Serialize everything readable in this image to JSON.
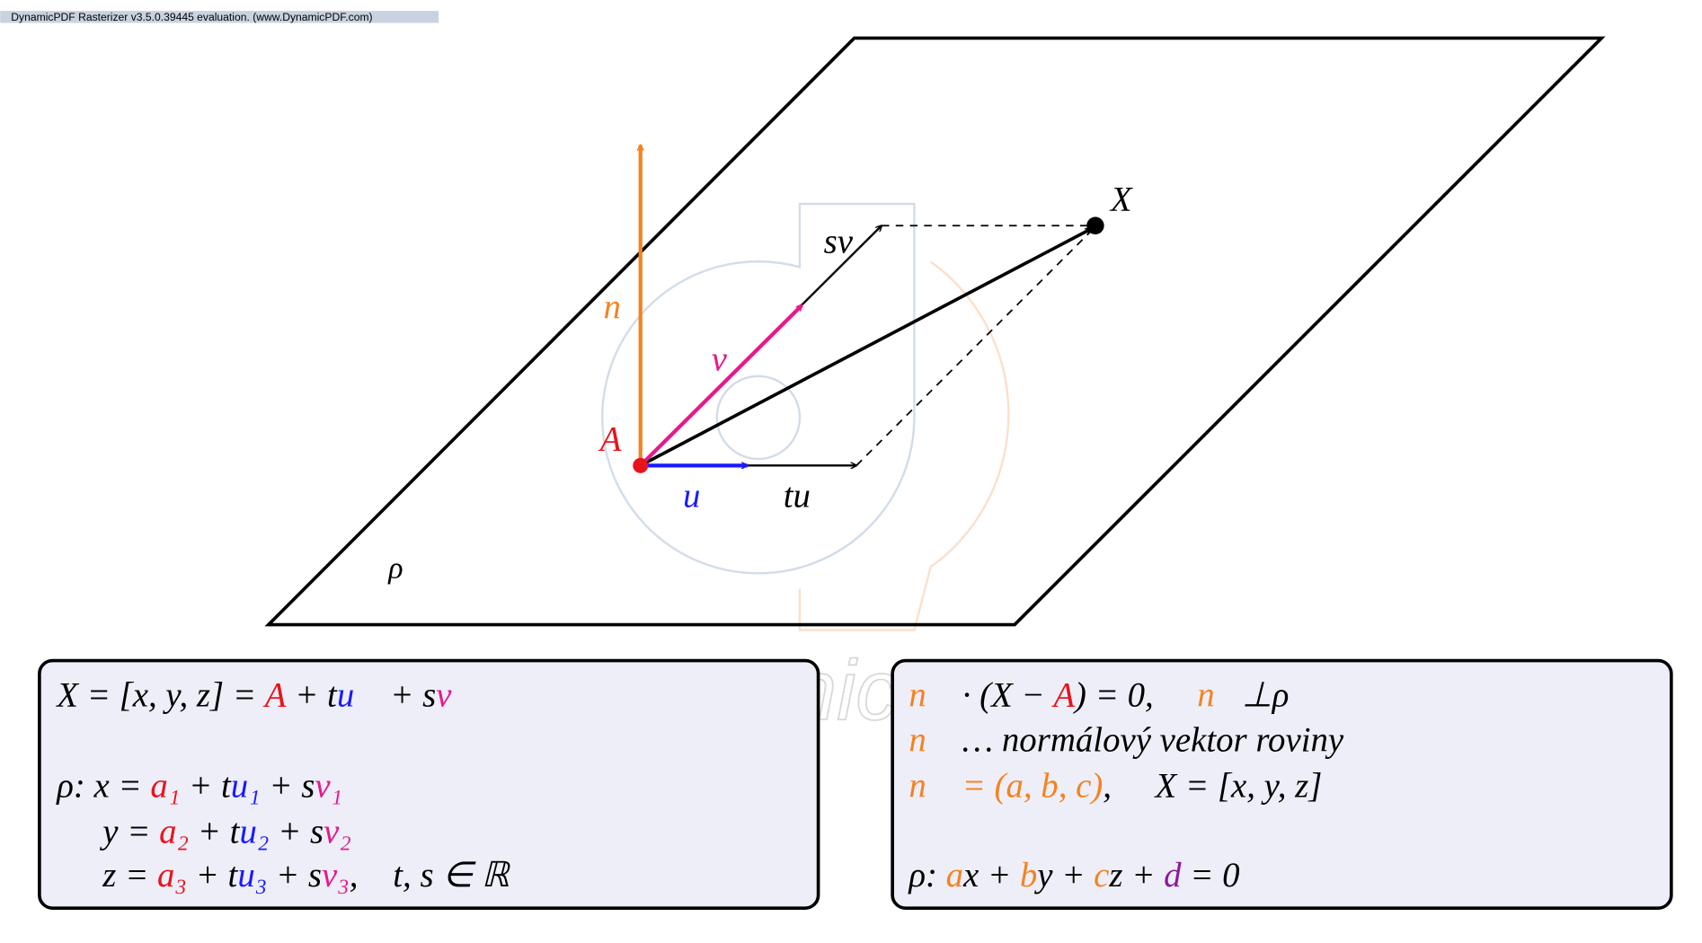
{
  "header": "DynamicPDF Rasterizer v3.5.0.39445 evaluation. (www.DynamicPDF.com)",
  "watermark": "DynamicPDF",
  "labels": {
    "X": "X",
    "A": "A",
    "n": "n⃗",
    "v": "v⃗",
    "u": "u⃗",
    "tu": "tu⃗",
    "sv": "sv⃗",
    "rho": "ρ"
  },
  "left_box": {
    "lines": [
      [
        {
          "t": "X = [x, y, z] = "
        },
        {
          "t": "A",
          "c": "#e8141c"
        },
        {
          "t": " + t"
        },
        {
          "t": "u⃗",
          "c": "#1a1aff"
        },
        {
          "t": " + s"
        },
        {
          "t": "v⃗",
          "c": "#e6198c"
        }
      ],
      [
        {
          "t": "ρ: x = "
        },
        {
          "t": "a₁",
          "c": "#e8141c"
        },
        {
          "t": " + t"
        },
        {
          "t": "u₁",
          "c": "#1a1aff"
        },
        {
          "t": " + s"
        },
        {
          "t": "v₁",
          "c": "#e6198c"
        }
      ],
      [
        {
          "t": "y = "
        },
        {
          "t": "a₂",
          "c": "#e8141c"
        },
        {
          "t": " + t"
        },
        {
          "t": "u₂",
          "c": "#1a1aff"
        },
        {
          "t": " + s"
        },
        {
          "t": "v₂",
          "c": "#e6198c"
        }
      ],
      [
        {
          "t": "z = "
        },
        {
          "t": "a₃",
          "c": "#e8141c"
        },
        {
          "t": " + t"
        },
        {
          "t": "u₃",
          "c": "#1a1aff"
        },
        {
          "t": " + s"
        },
        {
          "t": "v₃",
          "c": "#e6198c"
        },
        {
          "t": ",    t, s ∈ ℝ"
        }
      ]
    ]
  },
  "right_box": {
    "lines": [
      [
        {
          "t": "n⃗",
          "c": "#f5821f"
        },
        {
          "t": " · (X − "
        },
        {
          "t": "A",
          "c": "#e8141c"
        },
        {
          "t": ") = 0,     "
        },
        {
          "t": "n⃗",
          "c": "#f5821f"
        },
        {
          "t": "⊥ρ"
        }
      ],
      [
        {
          "t": "n⃗",
          "c": "#f5821f"
        },
        {
          "t": " … normálový vektor roviny"
        }
      ],
      [
        {
          "t": "n⃗ = (a, b, c)",
          "c": "#f5821f"
        },
        {
          "t": ",     X = [x, y, z]"
        }
      ],
      [
        {
          "t": "ρ: "
        },
        {
          "t": "a",
          "c": "#f5821f"
        },
        {
          "t": "x + "
        },
        {
          "t": "b",
          "c": "#f5821f"
        },
        {
          "t": "y + "
        },
        {
          "t": "c",
          "c": "#f5821f"
        },
        {
          "t": "z + "
        },
        {
          "t": "d",
          "c": "#8b1a9c"
        },
        {
          "t": " = 0"
        }
      ]
    ]
  }
}
